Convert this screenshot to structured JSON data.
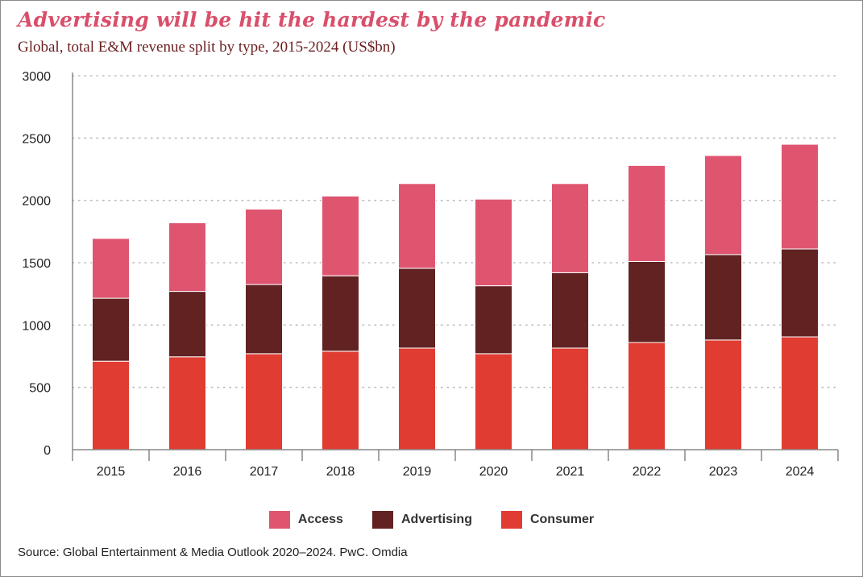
{
  "header": {
    "title": "Advertising will be hit the hardest by the pandemic",
    "subtitle": "Global, total E&M revenue split by type, 2015-2024 (US$bn)"
  },
  "source": "Source: Global Entertainment & Media Outlook 2020–2024. PwC. Omdia",
  "colors": {
    "access": "#df5570",
    "advertising": "#612221",
    "consumer": "#e03c32",
    "title": "#d94f6b",
    "subtitle": "#6b1e1e"
  },
  "chart_data": {
    "type": "bar",
    "stacked": true,
    "categories": [
      "2015",
      "2016",
      "2017",
      "2018",
      "2019",
      "2020",
      "2021",
      "2022",
      "2023",
      "2024"
    ],
    "series": [
      {
        "name": "Consumer",
        "values": [
          710,
          745,
          770,
          790,
          815,
          770,
          815,
          860,
          880,
          905
        ]
      },
      {
        "name": "Advertising",
        "values": [
          505,
          525,
          555,
          605,
          640,
          545,
          605,
          650,
          685,
          705
        ]
      },
      {
        "name": "Access",
        "values": [
          480,
          550,
          605,
          640,
          680,
          695,
          715,
          770,
          795,
          840
        ]
      }
    ],
    "ylim": [
      0,
      3000
    ],
    "yticks": [
      "0",
      "500",
      "1000",
      "1500",
      "2000",
      "2500",
      "3000"
    ],
    "grid": true,
    "legend_position": "bottom"
  }
}
